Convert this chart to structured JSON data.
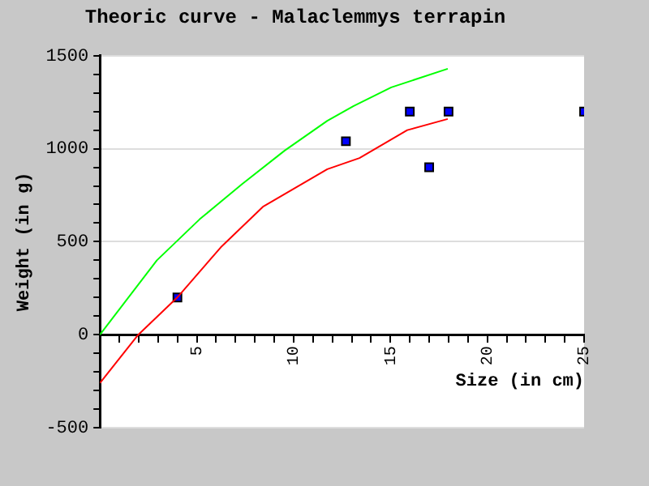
{
  "chart_data": {
    "type": "line",
    "title": "Theoric curve - Malaclemmys terrapin",
    "xlabel": "Size (in cm)",
    "ylabel": "Weight (in g)",
    "xlim": [
      0,
      25
    ],
    "xticks": [
      {
        "value": 0,
        "label": null
      },
      {
        "value": 1,
        "label": null
      },
      {
        "value": 2,
        "label": null
      },
      {
        "value": 3,
        "label": null
      },
      {
        "value": 4,
        "label": null
      },
      5,
      {
        "value": 6,
        "label": null
      },
      {
        "value": 7,
        "label": null
      },
      {
        "value": 8,
        "label": null
      },
      {
        "value": 9,
        "label": null
      },
      10,
      {
        "value": 11,
        "label": null
      },
      {
        "value": 12,
        "label": null
      },
      {
        "value": 13,
        "label": null
      },
      {
        "value": 14,
        "label": null
      },
      15,
      {
        "value": 16,
        "label": null
      },
      {
        "value": 17,
        "label": null
      },
      {
        "value": 18,
        "label": null
      },
      {
        "value": 19,
        "label": null
      },
      20,
      {
        "value": 21,
        "label": null
      },
      {
        "value": 22,
        "label": null
      },
      {
        "value": 23,
        "label": null
      },
      {
        "value": 24,
        "label": null
      },
      25
    ],
    "ylim": [
      -500,
      1500
    ],
    "yticks": [
      -500,
      {
        "value": -400,
        "label": null
      },
      {
        "value": -300,
        "label": null
      },
      {
        "value": -200,
        "label": null
      },
      {
        "value": -100,
        "label": null
      },
      0,
      {
        "value": 100,
        "label": null
      },
      {
        "value": 200,
        "label": null
      },
      {
        "value": 300,
        "label": null
      },
      {
        "value": 400,
        "label": null
      },
      500,
      {
        "value": 600,
        "label": null
      },
      {
        "value": 700,
        "label": null
      },
      {
        "value": 800,
        "label": null
      },
      {
        "value": 900,
        "label": null
      },
      1000,
      {
        "value": 1100,
        "label": null
      },
      {
        "value": 1200,
        "label": null
      },
      {
        "value": 1300,
        "label": null
      },
      {
        "value": 1400,
        "label": null
      },
      1500
    ],
    "grid": "y",
    "legend": false,
    "series": [
      {
        "type": "line",
        "color": "#00ff00",
        "marker": "none",
        "x": [
          0,
          2.94,
          5.14,
          7.34,
          9.54,
          11.74,
          13.1,
          15.04,
          17.96
        ],
        "values": [
          0,
          400,
          620,
          810,
          990,
          1150,
          1230,
          1330,
          1430
        ]
      },
      {
        "type": "line",
        "color": "#ff0000",
        "marker": "none",
        "x": [
          0,
          1.98,
          3.99,
          6.24,
          8.44,
          11.74,
          13.4,
          15.87,
          17.96
        ],
        "values": [
          -260,
          0,
          200,
          470,
          690,
          890,
          950,
          1100,
          1160
        ]
      },
      {
        "type": "scatter",
        "color": "#0000ff",
        "marker": "square",
        "x": [
          4,
          12.7,
          16,
          17,
          18,
          25
        ],
        "values": [
          200,
          1040,
          1200,
          900,
          1200,
          1200
        ]
      }
    ]
  }
}
